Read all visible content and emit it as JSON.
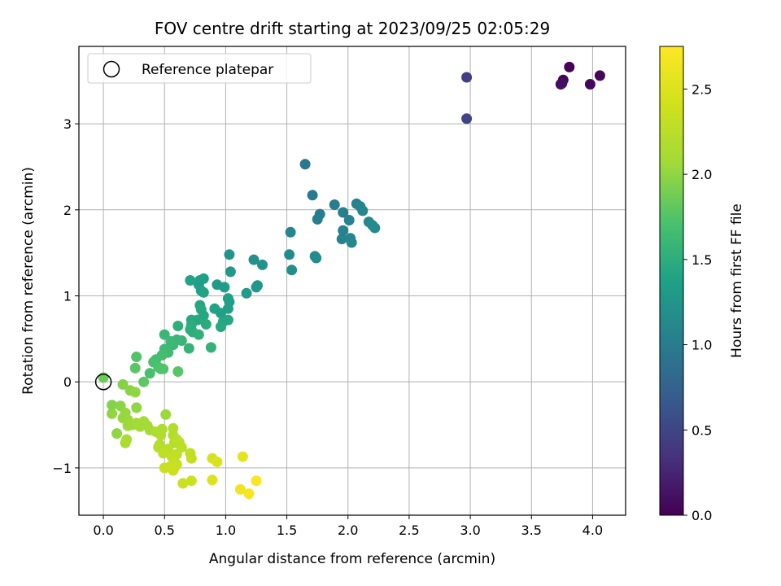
{
  "chart_data": {
    "type": "scatter",
    "title": "FOV centre drift starting at 2023/09/25 02:05:29",
    "xlabel": "Angular distance from reference (arcmin)",
    "ylabel": "Rotation from reference (arcmin)",
    "xlim": [
      -0.2,
      4.27
    ],
    "ylim": [
      -1.55,
      3.9
    ],
    "xticks": [
      0.0,
      0.5,
      1.0,
      1.5,
      2.0,
      2.5,
      3.0,
      3.5,
      4.0
    ],
    "xtick_labels": [
      "0.0",
      "0.5",
      "1.0",
      "1.5",
      "2.0",
      "2.5",
      "3.0",
      "3.5",
      "4.0"
    ],
    "yticks": [
      -1,
      0,
      1,
      2,
      3
    ],
    "ytick_labels": [
      "−1",
      "0",
      "1",
      "2",
      "3"
    ],
    "grid": true,
    "legend": {
      "placement": "top-left",
      "entries": [
        "Reference platepar"
      ]
    },
    "reference_point": {
      "x": 0,
      "y": 0
    },
    "colorbar": {
      "label": "Hours from first FF file",
      "colormap": "viridis",
      "range": [
        0.0,
        2.75
      ],
      "ticks": [
        0.0,
        0.5,
        1.0,
        1.5,
        2.0,
        2.5
      ],
      "tick_labels": [
        "0.0",
        "0.5",
        "1.0",
        "1.5",
        "2.0",
        "2.5"
      ]
    },
    "points": [
      [
        3.76,
        3.51,
        0.03
      ],
      [
        3.81,
        3.66,
        0.03
      ],
      [
        3.98,
        3.46,
        0.04
      ],
      [
        4.06,
        3.56,
        0.05
      ],
      [
        3.74,
        3.46,
        0.08
      ],
      [
        3.75,
        3.47,
        0.1
      ],
      [
        2.97,
        3.54,
        0.45
      ],
      [
        2.97,
        3.06,
        0.5
      ],
      [
        1.65,
        2.53,
        0.95
      ],
      [
        1.71,
        2.17,
        0.98
      ],
      [
        1.77,
        1.95,
        1.0
      ],
      [
        1.75,
        1.89,
        1.02
      ],
      [
        1.89,
        2.06,
        1.0
      ],
      [
        1.96,
        1.97,
        1.03
      ],
      [
        2.07,
        2.07,
        1.05
      ],
      [
        2.1,
        2.04,
        1.08
      ],
      [
        2.12,
        1.99,
        1.1
      ],
      [
        2.01,
        1.88,
        1.05
      ],
      [
        1.96,
        1.76,
        1.05
      ],
      [
        1.95,
        1.66,
        1.07
      ],
      [
        2.02,
        1.67,
        1.1
      ],
      [
        2.03,
        1.62,
        1.1
      ],
      [
        2.17,
        1.86,
        1.12
      ],
      [
        2.2,
        1.82,
        1.15
      ],
      [
        2.22,
        1.79,
        1.15
      ],
      [
        1.53,
        1.74,
        1.1
      ],
      [
        1.52,
        1.48,
        1.15
      ],
      [
        1.54,
        1.3,
        1.18
      ],
      [
        1.73,
        1.46,
        1.15
      ],
      [
        1.74,
        1.44,
        1.17
      ],
      [
        1.23,
        1.42,
        1.2
      ],
      [
        1.3,
        1.36,
        1.22
      ],
      [
        1.03,
        1.48,
        1.25
      ],
      [
        1.04,
        1.28,
        1.28
      ],
      [
        1.26,
        1.12,
        1.27
      ],
      [
        1.25,
        1.1,
        1.28
      ],
      [
        1.17,
        1.03,
        1.3
      ],
      [
        0.93,
        1.13,
        1.3
      ],
      [
        0.99,
        1.1,
        1.33
      ],
      [
        0.82,
        1.2,
        1.35
      ],
      [
        0.79,
        1.18,
        1.37
      ],
      [
        0.78,
        1.13,
        1.35
      ],
      [
        0.8,
        1.06,
        1.38
      ],
      [
        0.71,
        1.18,
        1.4
      ],
      [
        0.82,
        1.04,
        1.4
      ],
      [
        1.02,
        0.97,
        1.35
      ],
      [
        1.03,
        0.93,
        1.37
      ],
      [
        1.02,
        0.85,
        1.38
      ],
      [
        0.96,
        0.8,
        1.38
      ],
      [
        0.91,
        0.85,
        1.4
      ],
      [
        0.79,
        0.89,
        1.42
      ],
      [
        0.8,
        0.84,
        1.45
      ],
      [
        0.82,
        0.77,
        1.43
      ],
      [
        0.72,
        0.72,
        1.45
      ],
      [
        0.77,
        0.72,
        1.45
      ],
      [
        1.02,
        0.72,
        1.43
      ],
      [
        0.98,
        0.7,
        1.42
      ],
      [
        0.96,
        0.64,
        1.45
      ],
      [
        0.84,
        0.67,
        1.47
      ],
      [
        0.72,
        0.66,
        1.48
      ],
      [
        0.71,
        0.61,
        1.5
      ],
      [
        0.73,
        0.58,
        1.5
      ],
      [
        0.78,
        0.55,
        1.52
      ],
      [
        0.61,
        0.65,
        1.52
      ],
      [
        0.5,
        0.55,
        1.6
      ],
      [
        0.88,
        0.4,
        1.55
      ],
      [
        0.7,
        0.39,
        1.57
      ],
      [
        0.64,
        0.48,
        1.58
      ],
      [
        0.6,
        0.49,
        1.6
      ],
      [
        0.57,
        0.43,
        1.6
      ],
      [
        0.55,
        0.47,
        1.62
      ],
      [
        0.5,
        0.38,
        1.62
      ],
      [
        0.53,
        0.34,
        1.64
      ],
      [
        0.43,
        0.26,
        1.66
      ],
      [
        0.48,
        0.31,
        1.68
      ],
      [
        0.41,
        0.23,
        1.7
      ],
      [
        0.38,
        0.1,
        1.7
      ],
      [
        0.45,
        0.17,
        1.72
      ],
      [
        0.47,
        0.15,
        1.73
      ],
      [
        0.49,
        0.15,
        1.75
      ],
      [
        0.61,
        0.12,
        1.77
      ],
      [
        0.27,
        0.29,
        1.75
      ],
      [
        0.26,
        0.16,
        1.78
      ],
      [
        0.33,
        0.0,
        1.8
      ],
      [
        0.0,
        0.05,
        1.85
      ],
      [
        0.16,
        -0.03,
        1.95
      ],
      [
        0.22,
        -0.1,
        1.97
      ],
      [
        0.26,
        -0.12,
        2.0
      ],
      [
        0.07,
        -0.27,
        1.95
      ],
      [
        0.14,
        -0.28,
        1.98
      ],
      [
        0.07,
        -0.37,
        2.0
      ],
      [
        0.27,
        -0.3,
        2.0
      ],
      [
        0.18,
        -0.36,
        2.02
      ],
      [
        0.16,
        -0.42,
        2.02
      ],
      [
        0.2,
        -0.44,
        2.04
      ],
      [
        0.51,
        -0.38,
        2.05
      ],
      [
        0.11,
        -0.6,
        2.0
      ],
      [
        0.2,
        -0.51,
        2.05
      ],
      [
        0.24,
        -0.5,
        2.06
      ],
      [
        0.27,
        -0.48,
        2.08
      ],
      [
        0.33,
        -0.46,
        2.1
      ],
      [
        0.3,
        -0.52,
        2.1
      ],
      [
        0.36,
        -0.51,
        2.1
      ],
      [
        0.38,
        -0.56,
        2.1
      ],
      [
        0.18,
        -0.71,
        2.12
      ],
      [
        0.19,
        -0.67,
        2.14
      ],
      [
        0.48,
        -0.55,
        2.15
      ],
      [
        0.43,
        -0.58,
        2.17
      ],
      [
        0.47,
        -0.62,
        2.18
      ],
      [
        0.57,
        -0.54,
        2.2
      ],
      [
        0.57,
        -0.62,
        2.2
      ],
      [
        0.46,
        -0.73,
        2.2
      ],
      [
        0.45,
        -0.76,
        2.22
      ],
      [
        0.58,
        -0.71,
        2.22
      ],
      [
        0.6,
        -0.67,
        2.24
      ],
      [
        0.53,
        -0.78,
        2.25
      ],
      [
        0.62,
        -0.7,
        2.25
      ],
      [
        0.64,
        -0.76,
        2.26
      ],
      [
        0.49,
        -0.83,
        2.28
      ],
      [
        0.6,
        -0.84,
        2.28
      ],
      [
        0.56,
        -0.87,
        2.3
      ],
      [
        0.71,
        -0.83,
        2.3
      ],
      [
        0.72,
        -0.89,
        2.32
      ],
      [
        0.58,
        -0.93,
        2.33
      ],
      [
        0.6,
        -0.96,
        2.33
      ],
      [
        0.55,
        -0.98,
        2.35
      ],
      [
        0.5,
        -1.0,
        2.35
      ],
      [
        0.57,
        -1.03,
        2.37
      ],
      [
        0.58,
        -1.0,
        2.37
      ],
      [
        0.65,
        -1.18,
        2.35
      ],
      [
        0.72,
        -1.15,
        2.37
      ],
      [
        0.89,
        -0.89,
        2.45
      ],
      [
        0.93,
        -0.93,
        2.47
      ],
      [
        0.89,
        -1.14,
        2.5
      ],
      [
        1.14,
        -0.87,
        2.55
      ],
      [
        1.12,
        -1.25,
        2.65
      ],
      [
        1.19,
        -1.3,
        2.7
      ],
      [
        1.25,
        -1.15,
        2.72
      ]
    ]
  }
}
